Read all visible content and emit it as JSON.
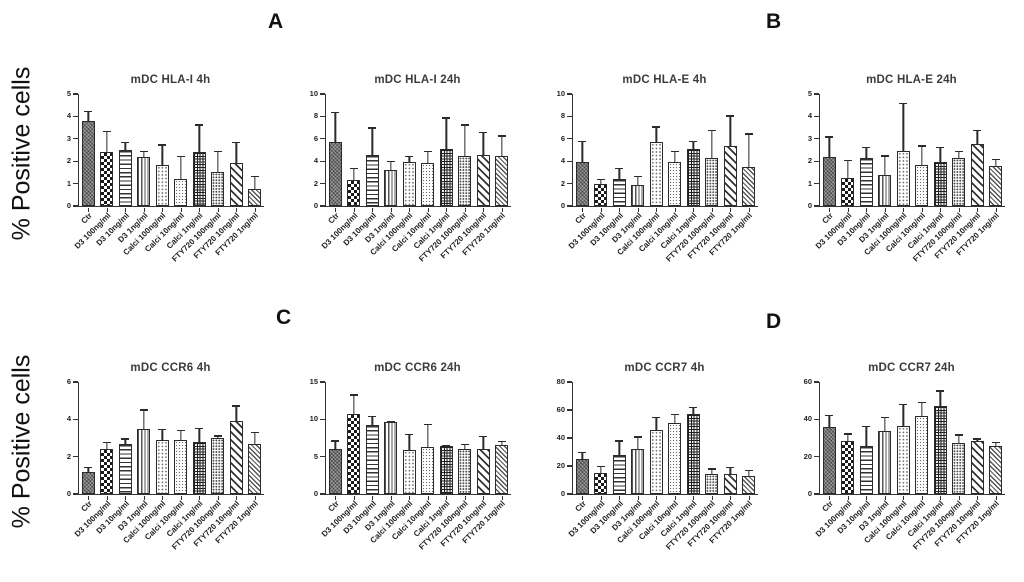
{
  "figure": {
    "ylabel": "% Positive cells",
    "panel_labels": [
      "A",
      "B",
      "C",
      "D"
    ],
    "background_color": "#ffffff",
    "axis_color": "#333333",
    "text_color": "#222222"
  },
  "bar_patterns": [
    "dark-crosshatch",
    "checkerboard",
    "horizontal-lines",
    "vertical-lines",
    "fine-dots",
    "fine-dots-dense",
    "dark-grid",
    "medium-dots",
    "diagonal-stripes-wide",
    "diagonal-stripes-fine"
  ],
  "chart_data": {
    "type": "bar",
    "ylabel": "% Positive cells",
    "error_bars": "upper-sd-with-cap",
    "grid": false,
    "legend": false,
    "categories": [
      "Ctr",
      "D3 100ng/ml",
      "D3 10ng/ml",
      "D3 1ng/ml",
      "Calci 100ng/ml",
      "Calci 10ng/ml",
      "Calci 1ng/ml",
      "FTY720 100ng/ml",
      "FTY720 10ng/ml",
      "FTY720 1ng/ml"
    ],
    "charts": [
      {
        "title": "mDC HLA-I 4h",
        "ylim": [
          0,
          5
        ],
        "ytick": 1,
        "values": [
          3.8,
          2.4,
          2.5,
          2.2,
          1.85,
          1.2,
          2.4,
          1.5,
          1.9,
          0.75
        ],
        "errors": [
          0.5,
          1.0,
          0.4,
          0.3,
          0.95,
          1.1,
          1.3,
          1.0,
          1.0,
          0.65
        ]
      },
      {
        "title": "mDC HLA-I 24h",
        "ylim": [
          0,
          10
        ],
        "ytick": 2,
        "values": [
          5.7,
          2.3,
          4.6,
          3.2,
          3.9,
          3.8,
          5.1,
          4.5,
          4.6,
          4.5
        ],
        "errors": [
          2.8,
          1.2,
          2.5,
          0.9,
          0.7,
          1.2,
          2.9,
          2.9,
          2.1,
          1.9
        ]
      },
      {
        "title": "mDC HLA-E 4h",
        "ylim": [
          0,
          10
        ],
        "ytick": 2,
        "values": [
          3.9,
          2.0,
          2.4,
          1.9,
          5.7,
          3.9,
          5.1,
          4.3,
          5.4,
          3.5
        ],
        "errors": [
          2.0,
          0.5,
          1.1,
          0.9,
          1.5,
          1.1,
          0.8,
          2.6,
          2.8,
          3.1
        ]
      },
      {
        "title": "mDC HLA-E 24h",
        "ylim": [
          0,
          5
        ],
        "ytick": 1,
        "values": [
          2.2,
          1.25,
          2.15,
          1.4,
          2.45,
          1.85,
          1.95,
          2.15,
          2.75,
          1.8
        ],
        "errors": [
          0.95,
          0.85,
          0.55,
          0.9,
          2.2,
          0.9,
          0.75,
          0.35,
          0.7,
          0.35
        ]
      },
      {
        "title": "mDC CCR6 4h",
        "ylim": [
          0,
          6
        ],
        "ytick": 2,
        "values": [
          1.2,
          2.4,
          2.7,
          3.5,
          2.9,
          2.9,
          2.8,
          3.0,
          3.9,
          2.7
        ],
        "errors": [
          0.3,
          0.45,
          0.35,
          1.1,
          0.65,
          0.6,
          0.8,
          0.2,
          0.9,
          0.7
        ]
      },
      {
        "title": "mDC CCR6 24h",
        "ylim": [
          0,
          15
        ],
        "ytick": 5,
        "values": [
          6.1,
          10.7,
          9.3,
          9.7,
          5.9,
          6.3,
          6.5,
          6.0,
          6.1,
          6.6
        ],
        "errors": [
          1.2,
          2.8,
          1.3,
          0.2,
          2.3,
          3.2,
          0.2,
          0.9,
          1.8,
          0.7
        ]
      },
      {
        "title": "mDC CCR7 4h",
        "ylim": [
          0,
          80
        ],
        "ytick": 20,
        "values": [
          25,
          15,
          28,
          32,
          46,
          51,
          57,
          14.5,
          14.5,
          13
        ],
        "errors": [
          6,
          6,
          11,
          10,
          10,
          7,
          6,
          4.5,
          5.5,
          5
        ]
      },
      {
        "title": "mDC CCR7 24h",
        "ylim": [
          0,
          60
        ],
        "ytick": 20,
        "values": [
          36,
          28.5,
          25.5,
          34,
          36.5,
          42,
          47,
          27.5,
          28.5,
          25.5
        ],
        "errors": [
          7,
          4.5,
          11.5,
          8,
          12.5,
          8,
          9,
          5,
          2,
          3
        ]
      }
    ]
  }
}
